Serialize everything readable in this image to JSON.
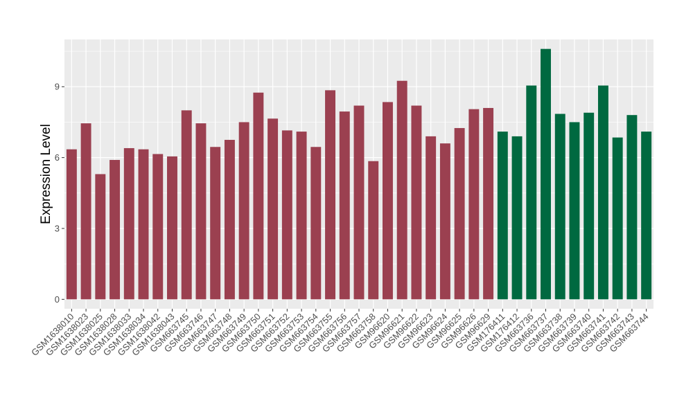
{
  "chart_data": {
    "type": "bar",
    "title": "",
    "xlabel": "",
    "ylabel": "Expression Level",
    "ylim": [
      -0.4,
      11.0
    ],
    "yticks": [
      0,
      3,
      6,
      9
    ],
    "grid": true,
    "legend": "none",
    "colors": {
      "group1": "#9B4050",
      "group2": "#006940",
      "panel": "#EBEBEB",
      "grid": "#FFFFFF"
    },
    "categories": [
      "GSM1638010",
      "GSM1638023",
      "GSM1638025",
      "GSM1638028",
      "GSM1638033",
      "GSM1638034",
      "GSM1638042",
      "GSM1638043",
      "GSM663745",
      "GSM663746",
      "GSM663747",
      "GSM663748",
      "GSM663749",
      "GSM663750",
      "GSM663751",
      "GSM663752",
      "GSM663753",
      "GSM663754",
      "GSM663755",
      "GSM663756",
      "GSM663757",
      "GSM663758",
      "GSM96620",
      "GSM96621",
      "GSM96622",
      "GSM96623",
      "GSM96624",
      "GSM96625",
      "GSM96626",
      "GSM96629",
      "GSM176411",
      "GSM176412",
      "GSM663736",
      "GSM663737",
      "GSM663738",
      "GSM663739",
      "GSM663740",
      "GSM663741",
      "GSM663742",
      "GSM663743",
      "GSM663744"
    ],
    "values": [
      6.35,
      7.45,
      5.3,
      5.9,
      6.4,
      6.35,
      6.15,
      6.05,
      8.0,
      7.45,
      6.45,
      6.75,
      7.5,
      8.75,
      7.65,
      7.15,
      7.1,
      6.45,
      8.85,
      7.95,
      8.2,
      5.85,
      8.35,
      9.25,
      8.2,
      6.9,
      6.6,
      7.25,
      8.05,
      8.1,
      7.1,
      6.9,
      9.05,
      10.6,
      7.85,
      7.5,
      7.9,
      9.05,
      6.85,
      7.8,
      7.1
    ],
    "groups": [
      1,
      1,
      1,
      1,
      1,
      1,
      1,
      1,
      1,
      1,
      1,
      1,
      1,
      1,
      1,
      1,
      1,
      1,
      1,
      1,
      1,
      1,
      1,
      1,
      1,
      1,
      1,
      1,
      1,
      1,
      2,
      2,
      2,
      2,
      2,
      2,
      2,
      2,
      2,
      2,
      2
    ]
  }
}
